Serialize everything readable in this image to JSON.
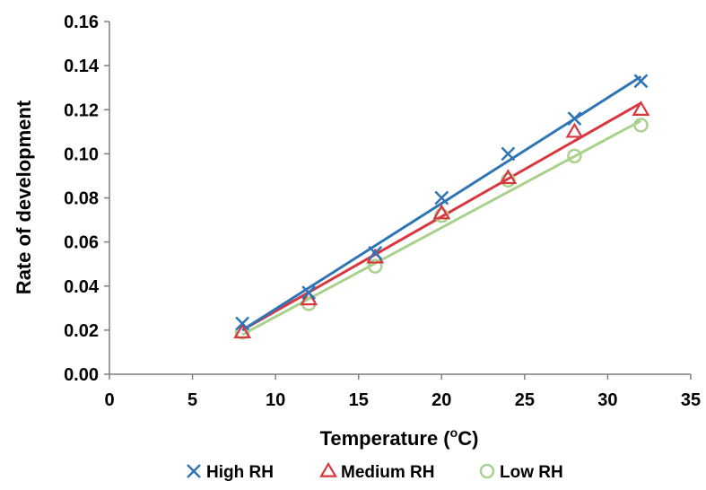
{
  "chart_data": {
    "type": "scatter",
    "xlabel": "Temperature (",
    "xlabel_sup": "o",
    "xlabel_tail": "C)",
    "ylabel": "Rate of development",
    "xlim": [
      0,
      35
    ],
    "ylim": [
      0,
      0.16
    ],
    "xticks": [
      "0",
      "5",
      "10",
      "15",
      "20",
      "25",
      "30",
      "35"
    ],
    "yticks": [
      "0.00",
      "0.02",
      "0.04",
      "0.06",
      "0.08",
      "0.10",
      "0.12",
      "0.14",
      "0.16"
    ],
    "grid": false,
    "legend_position": "bottom",
    "series": [
      {
        "name": "High RH",
        "marker": "x",
        "color": "#2E75B6",
        "x": [
          8,
          12,
          16,
          20,
          24,
          28,
          32
        ],
        "y": [
          0.023,
          0.037,
          0.055,
          0.08,
          0.1,
          0.116,
          0.133
        ],
        "trendline": [
          [
            8,
            0.02
          ],
          [
            32,
            0.135
          ]
        ]
      },
      {
        "name": "Medium RH",
        "marker": "triangle",
        "color": "#D9363E",
        "x": [
          8,
          12,
          16,
          20,
          24,
          28,
          32
        ],
        "y": [
          0.019,
          0.034,
          0.053,
          0.073,
          0.089,
          0.11,
          0.12
        ],
        "trendline": [
          [
            8,
            0.02
          ],
          [
            32,
            0.123
          ]
        ]
      },
      {
        "name": "Low RH",
        "marker": "circle",
        "color": "#A9D18E",
        "x": [
          8,
          12,
          16,
          20,
          24,
          28,
          32
        ],
        "y": [
          0.019,
          0.032,
          0.049,
          0.072,
          0.088,
          0.099,
          0.113
        ],
        "trendline": [
          [
            8,
            0.018
          ],
          [
            32,
            0.115
          ]
        ]
      }
    ]
  }
}
